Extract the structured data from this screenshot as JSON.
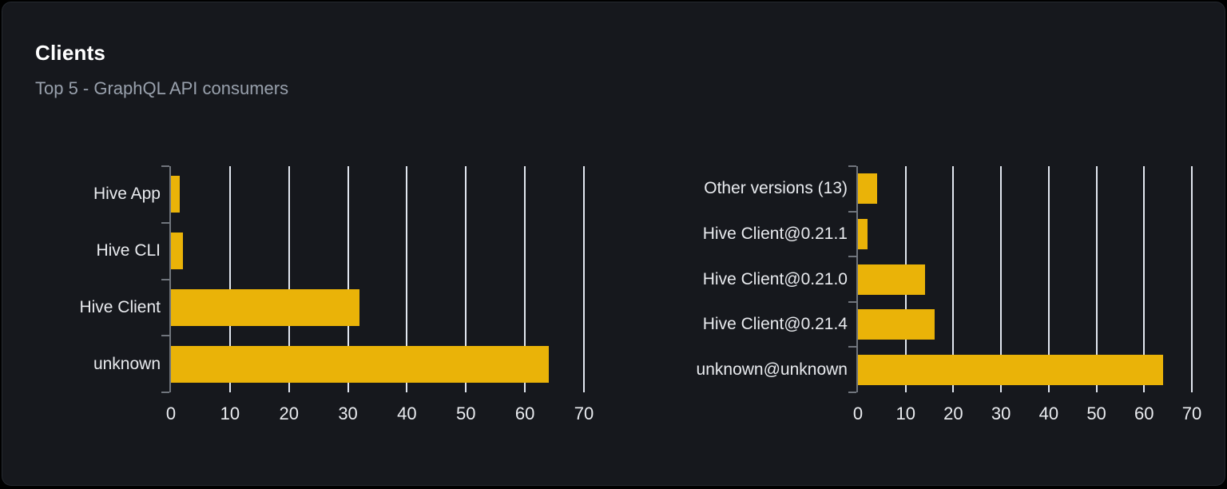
{
  "header": {
    "title": "Clients",
    "subtitle": "Top 5 - GraphQL API consumers"
  },
  "colors": {
    "page_bg": "#000000",
    "card_bg": "#16181d",
    "card_border": "#24282f",
    "bar": "#eab308",
    "gridline": "#e2e7f0",
    "axis": "#70757d",
    "title_text": "#ffffff",
    "subtitle_text": "#98a0ac",
    "label_text": "#e9ebef"
  },
  "chart_data": [
    {
      "type": "bar",
      "orientation": "horizontal",
      "title": "",
      "xlabel": "",
      "ylabel": "",
      "categories": [
        "Hive App",
        "Hive CLI",
        "Hive Client",
        "unknown"
      ],
      "values": [
        1.5,
        2,
        32,
        64
      ],
      "xlim": [
        0,
        70
      ],
      "xticks": [
        0,
        10,
        20,
        30,
        40,
        50,
        60,
        70
      ],
      "grid": true,
      "legend": false,
      "bar_color": "#eab308"
    },
    {
      "type": "bar",
      "orientation": "horizontal",
      "title": "",
      "xlabel": "",
      "ylabel": "",
      "categories": [
        "Other versions (13)",
        "Hive Client@0.21.1",
        "Hive Client@0.21.0",
        "Hive Client@0.21.4",
        "unknown@unknown"
      ],
      "values": [
        4,
        2,
        14,
        16,
        64
      ],
      "xlim": [
        0,
        70
      ],
      "xticks": [
        0,
        10,
        20,
        30,
        40,
        50,
        60,
        70
      ],
      "grid": true,
      "legend": false,
      "bar_color": "#eab308"
    }
  ]
}
